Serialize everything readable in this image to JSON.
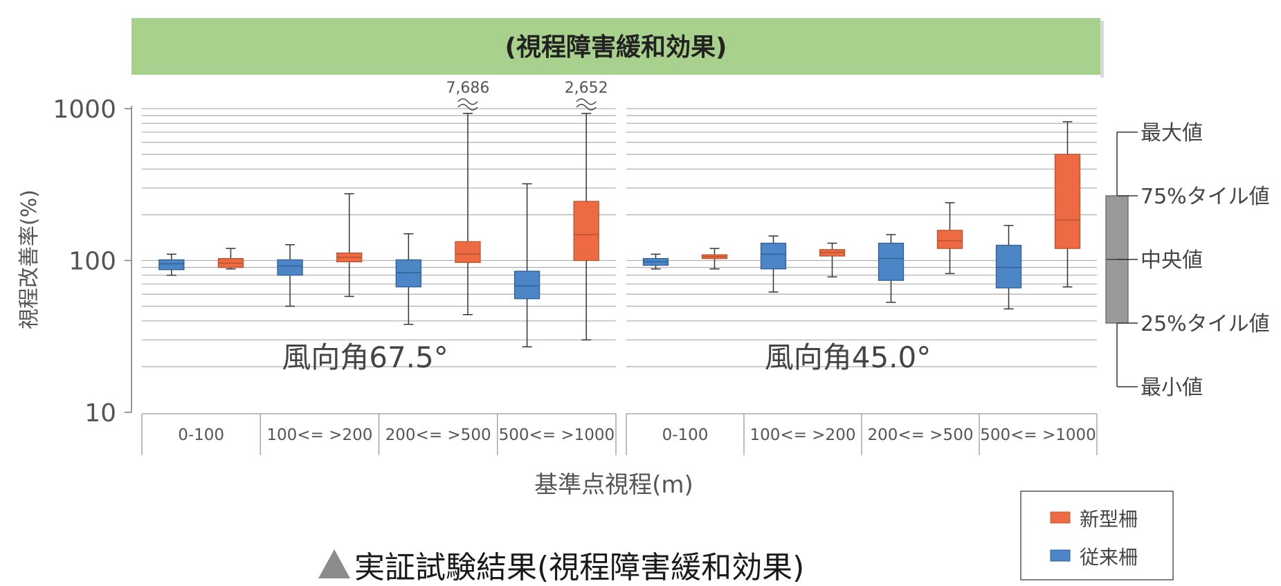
{
  "banner": {
    "title": "(視程障害緩和効果)",
    "color": "#a9d18e"
  },
  "caption": {
    "marker": "▲",
    "text": "実証試験結果(視程障害緩和効果)",
    "marker_color": "#8c8c8c"
  },
  "chart_data": {
    "type": "boxplot",
    "ylabel": "視程改善率(%)",
    "xlabel": "基準点視程(m)",
    "yscale": "log",
    "ylim": [
      10,
      1000
    ],
    "yticks": [
      10,
      100,
      1000
    ],
    "yticklabels": [
      "10",
      "100",
      "1000"
    ],
    "grid": true,
    "categories": [
      "0-100",
      "100<= >200",
      "200<= >500",
      "500<= >1000"
    ],
    "series_colors": {
      "新型柵": "#ed6a43",
      "従来柵": "#4d86c6"
    },
    "panels": [
      {
        "label": "風向角67.5°",
        "groups": [
          {
            "category": "0-100",
            "従来柵": {
              "min": 80,
              "q1": 87,
              "median": 95,
              "q3": 101,
              "max": 110
            },
            "新型柵": {
              "min": 88,
              "q1": 90,
              "median": 96,
              "q3": 103,
              "max": 120
            }
          },
          {
            "category": "100<= >200",
            "従来柵": {
              "min": 50,
              "q1": 80,
              "median": 92,
              "q3": 101,
              "max": 127
            },
            "新型柵": {
              "min": 58,
              "q1": 98,
              "median": 105,
              "q3": 112,
              "max": 275
            }
          },
          {
            "category": "200<= >500",
            "従来柵": {
              "min": 38,
              "q1": 67,
              "median": 83,
              "q3": 101,
              "max": 150
            },
            "新型柵": {
              "min": 44,
              "q1": 97,
              "median": 110,
              "q3": 133,
              "max": 7686,
              "max_label": "7,686",
              "truncated": true
            }
          },
          {
            "category": "500<= >1000",
            "従来柵": {
              "min": 27,
              "q1": 56,
              "median": 68,
              "q3": 85,
              "max": 320
            },
            "新型柵": {
              "min": 30,
              "q1": 100,
              "median": 148,
              "q3": 245,
              "max": 2652,
              "max_label": "2,652",
              "truncated": true
            }
          }
        ]
      },
      {
        "label": "風向角45.0°",
        "groups": [
          {
            "category": "0-100",
            "従来柵": {
              "min": 88,
              "q1": 93,
              "median": 98,
              "q3": 103,
              "max": 110
            },
            "新型柵": {
              "min": 88,
              "q1": 103,
              "median": 106,
              "q3": 109,
              "max": 120
            }
          },
          {
            "category": "100<= >200",
            "従来柵": {
              "min": 62,
              "q1": 88,
              "median": 110,
              "q3": 130,
              "max": 145
            },
            "新型柵": {
              "min": 78,
              "q1": 107,
              "median": 113,
              "q3": 118,
              "max": 130
            }
          },
          {
            "category": "200<= >500",
            "従来柵": {
              "min": 53,
              "q1": 74,
              "median": 103,
              "q3": 130,
              "max": 148
            },
            "新型柵": {
              "min": 82,
              "q1": 120,
              "median": 135,
              "q3": 158,
              "max": 240
            }
          },
          {
            "category": "500<= >1000",
            "従来柵": {
              "min": 48,
              "q1": 66,
              "median": 90,
              "q3": 126,
              "max": 170
            },
            "新型柵": {
              "min": 67,
              "q1": 120,
              "median": 185,
              "q3": 500,
              "max": 820
            }
          }
        ]
      }
    ],
    "key": {
      "color": "#999999",
      "labels": {
        "max": "最大値",
        "q3": "75%タイル値",
        "median": "中央値",
        "q1": "25%タイル値",
        "min": "最小値"
      }
    },
    "legend": {
      "position": "bottom-right",
      "entries": [
        {
          "name": "新型柵",
          "color": "#ed6a43"
        },
        {
          "name": "従来柵",
          "color": "#4d86c6"
        }
      ]
    }
  }
}
